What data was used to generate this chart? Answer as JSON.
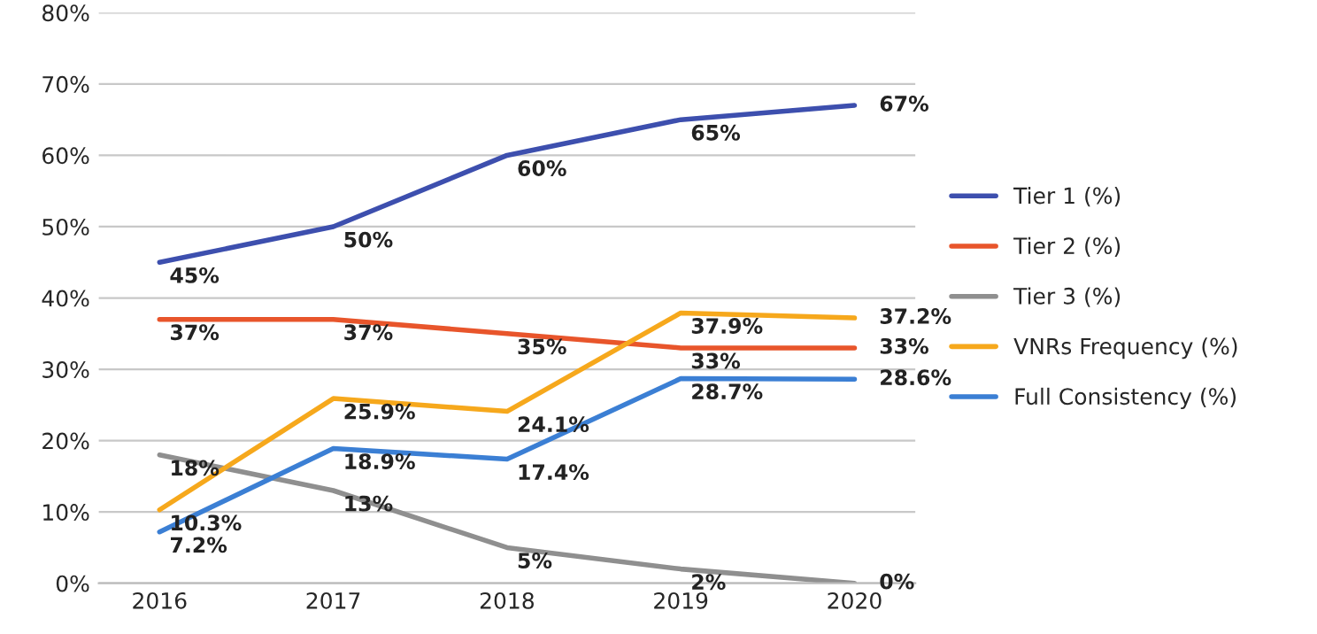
{
  "chart_data": {
    "type": "line",
    "categories": [
      "2016",
      "2017",
      "2018",
      "2019",
      "2020"
    ],
    "series": [
      {
        "name": "Tier 1 (%)",
        "color": "#3d4fae",
        "values": [
          45,
          50,
          60,
          65,
          67
        ],
        "value_labels": [
          "45%",
          "50%",
          "60%",
          "65%",
          "67%"
        ]
      },
      {
        "name": "Tier 2 (%)",
        "color": "#e8552b",
        "values": [
          37,
          37,
          35,
          33,
          33
        ],
        "value_labels": [
          "37%",
          "37%",
          "35%",
          "33%",
          "33%"
        ]
      },
      {
        "name": "Tier 3 (%)",
        "color": "#8f8f8f",
        "values": [
          18,
          13,
          5,
          2,
          0
        ],
        "value_labels": [
          "18%",
          "13%",
          "5%",
          "2%",
          "0%"
        ]
      },
      {
        "name": "VNRs Frequency (%)",
        "color": "#f6a81c",
        "values": [
          10.3,
          25.9,
          24.1,
          37.9,
          37.2
        ],
        "value_labels": [
          "10.3%",
          "25.9%",
          "24.1%",
          "37.9%",
          "37.2%"
        ]
      },
      {
        "name": "Full Consistency (%)",
        "color": "#3b7fd4",
        "values": [
          7.2,
          18.9,
          17.4,
          28.7,
          28.6
        ],
        "value_labels": [
          "7.2%",
          "18.9%",
          "17.4%",
          "28.7%",
          "28.6%"
        ]
      }
    ],
    "ylim": [
      0,
      80
    ],
    "yticks": [
      {
        "value": 0,
        "label": "0%"
      },
      {
        "value": 10,
        "label": "10%"
      },
      {
        "value": 20,
        "label": "20%"
      },
      {
        "value": 30,
        "label": "30%"
      },
      {
        "value": 40,
        "label": "40%"
      },
      {
        "value": 50,
        "label": "50%"
      },
      {
        "value": 60,
        "label": "60%"
      },
      {
        "value": 70,
        "label": "70%"
      },
      {
        "value": 80,
        "label": "80%"
      }
    ],
    "grid": "y",
    "legend": "right",
    "marker": "none",
    "line_style": "solid"
  }
}
